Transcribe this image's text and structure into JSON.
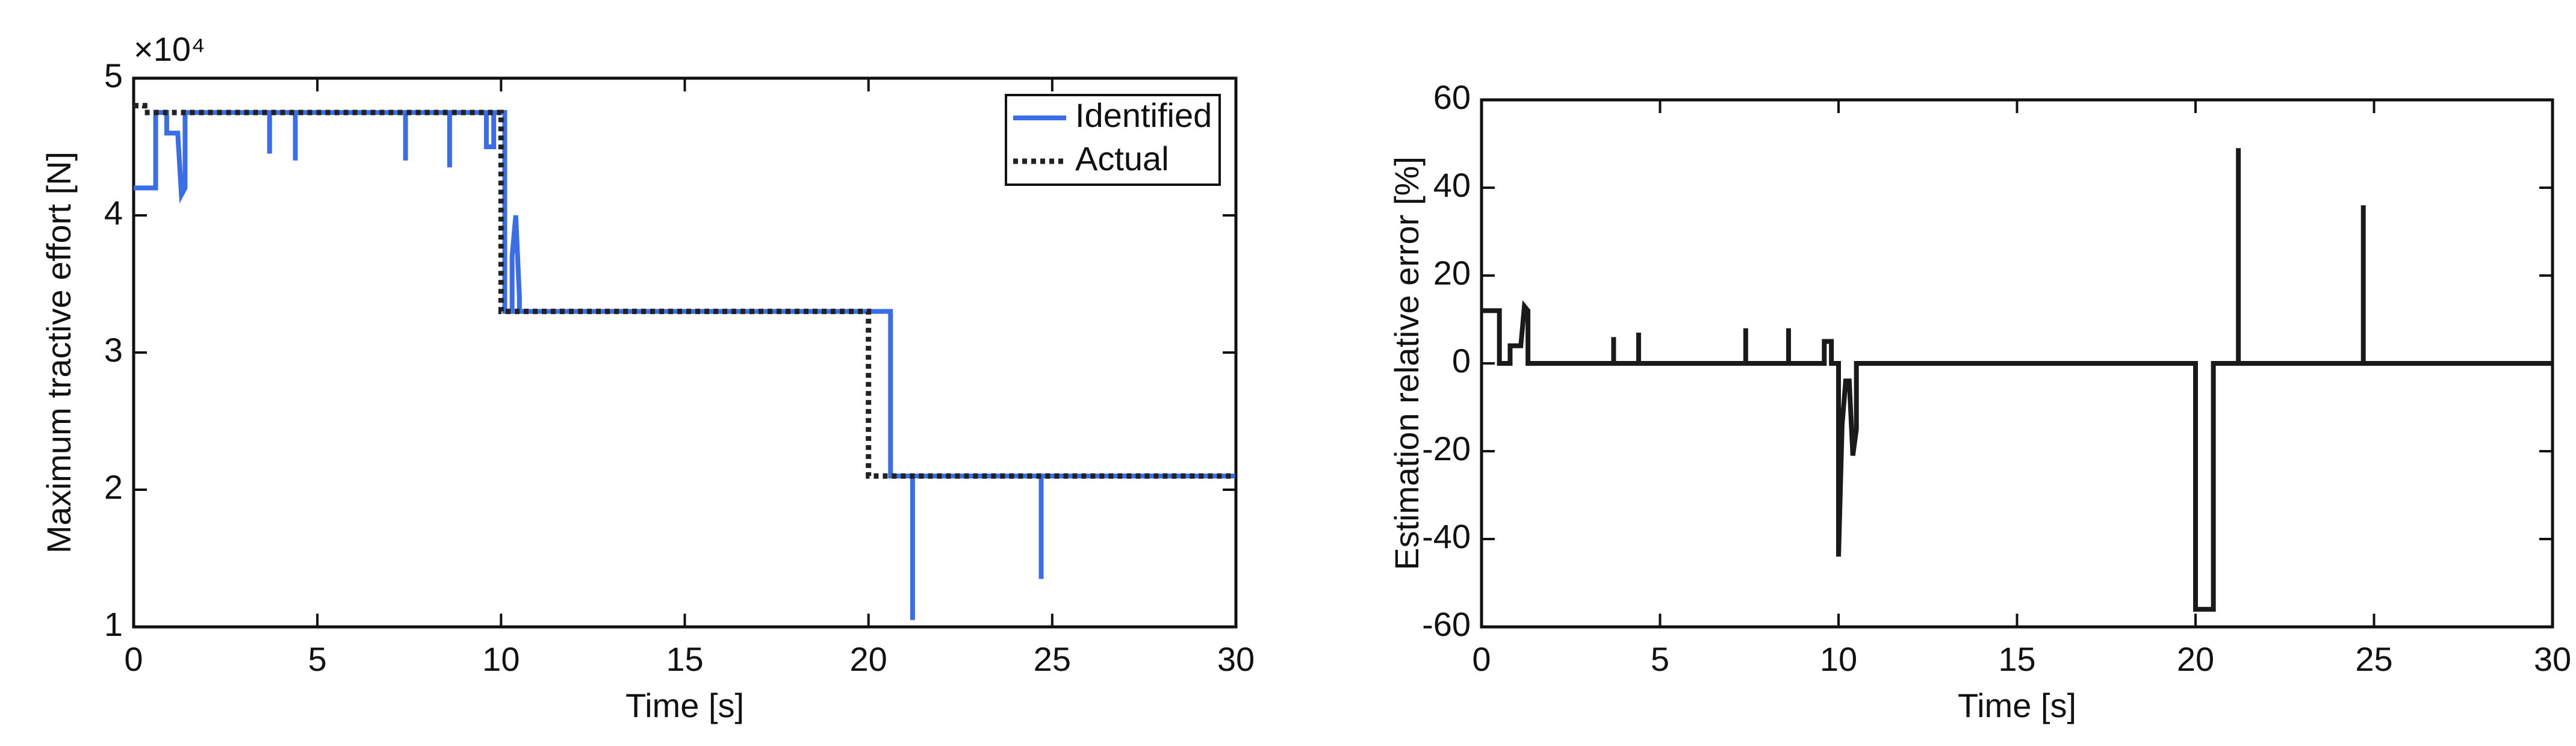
{
  "chart_data": [
    {
      "type": "line",
      "xlabel": "Time [s]",
      "ylabel": "Maximum tractive effort [N]",
      "y_scale_label": "×10⁴",
      "xlim": [
        0,
        30
      ],
      "xticks": [
        0,
        5,
        10,
        15,
        20,
        25,
        30
      ],
      "ylim": [
        10000,
        50000
      ],
      "yticks": [
        {
          "value": 10000,
          "label": "1"
        },
        {
          "value": 20000,
          "label": "2"
        },
        {
          "value": 30000,
          "label": "3"
        },
        {
          "value": 40000,
          "label": "4"
        },
        {
          "value": 50000,
          "label": "5"
        }
      ],
      "legend": "upper right",
      "grid": false,
      "series": [
        {
          "name": "Identified",
          "color": "#3a6ee8",
          "style": "solid",
          "x": [
            0,
            0.6,
            0.6,
            0.9,
            0.9,
            1.2,
            1.3,
            1.4,
            1.4,
            3.7,
            3.7,
            3.7,
            4.4,
            4.4,
            4.4,
            7.4,
            7.4,
            7.4,
            8.6,
            8.6,
            8.6,
            9.6,
            9.6,
            9.8,
            9.8,
            10.1,
            10.1,
            10.3,
            10.3,
            10.4,
            10.5,
            10.5,
            20.6,
            20.6,
            21.2,
            21.2,
            21.2,
            24.7,
            24.7,
            24.7,
            30
          ],
          "values": [
            42000,
            42000,
            47500,
            47500,
            46000,
            46000,
            41500,
            42000,
            47500,
            47500,
            44500,
            47500,
            47500,
            44000,
            47500,
            47500,
            44000,
            47500,
            47500,
            43500,
            47500,
            47500,
            45000,
            45000,
            47500,
            47500,
            33000,
            33000,
            37000,
            40000,
            34000,
            33000,
            33000,
            21000,
            21000,
            10500,
            21000,
            21000,
            13500,
            21000,
            21000
          ]
        },
        {
          "name": "Actual",
          "color": "#222222",
          "style": "dotted",
          "x": [
            0,
            0.3,
            0.3,
            10,
            10,
            20,
            20,
            30
          ],
          "values": [
            48000,
            48000,
            47500,
            47500,
            33000,
            33000,
            21000,
            21000
          ]
        }
      ]
    },
    {
      "type": "line",
      "xlabel": "Time [s]",
      "ylabel": "Estimation relative error [%]",
      "xlim": [
        0,
        30
      ],
      "xticks": [
        0,
        5,
        10,
        15,
        20,
        25,
        30
      ],
      "ylim": [
        -60,
        60
      ],
      "yticks": [
        -60,
        -40,
        -20,
        0,
        20,
        40,
        60
      ],
      "grid": false,
      "series": [
        {
          "color": "#1a1a1a",
          "style": "solid",
          "x": [
            0,
            0.5,
            0.5,
            0.8,
            0.8,
            1.1,
            1.2,
            1.3,
            1.3,
            3.7,
            3.7,
            3.7,
            4.4,
            4.4,
            4.4,
            7.4,
            7.4,
            7.4,
            8.6,
            8.6,
            8.6,
            9.6,
            9.6,
            9.8,
            9.8,
            10.0,
            10.0,
            10.1,
            10.2,
            10.3,
            10.4,
            10.5,
            10.5,
            20.0,
            20.0,
            20.5,
            20.5,
            21.2,
            21.2,
            21.2,
            24.7,
            24.7,
            24.7,
            30
          ],
          "values": [
            12,
            12,
            0,
            0,
            4,
            4,
            13,
            12,
            0,
            0,
            6,
            0,
            0,
            7,
            0,
            0,
            8,
            0,
            0,
            8,
            0,
            0,
            5,
            5,
            0,
            0,
            -44,
            -14,
            -4,
            -4,
            -21,
            -15,
            0,
            0,
            -56,
            -56,
            0,
            0,
            49,
            0,
            0,
            36,
            0,
            0
          ]
        }
      ]
    }
  ]
}
